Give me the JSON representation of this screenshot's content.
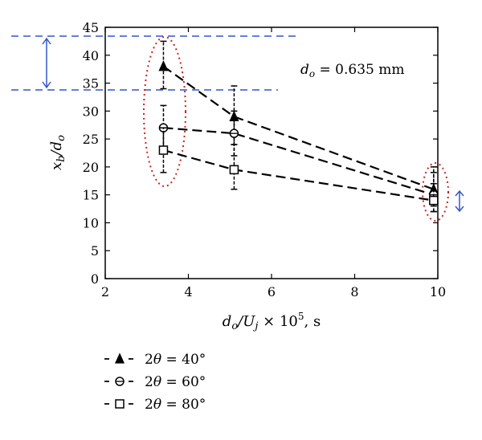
{
  "chart_data": {
    "type": "scatter",
    "xlabel": "d_o/U_j × 10^5, s",
    "ylabel": "x_b/d_o",
    "xlim": [
      2,
      10
    ],
    "ylim": [
      0,
      45
    ],
    "x_ticks": [
      2,
      4,
      6,
      8,
      10
    ],
    "y_ticks": [
      0,
      5,
      10,
      15,
      20,
      25,
      30,
      35,
      40,
      45
    ],
    "grid": false,
    "legend_position": "bottom-left (below plot)",
    "annotation": "d_o = 0.635 mm",
    "series": [
      {
        "name": "2θ = 40°",
        "marker": "triangle",
        "x": [
          3.4,
          5.1,
          9.9
        ],
        "y": [
          38,
          29,
          16
        ],
        "y_err_low": [
          34,
          24,
          13
        ],
        "y_err_high": [
          42.5,
          34.5,
          20
        ]
      },
      {
        "name": "2θ = 60°",
        "marker": "circle",
        "x": [
          3.4,
          5.1,
          9.9
        ],
        "y": [
          27,
          26,
          15
        ],
        "y_err_low": [
          23,
          22,
          12
        ],
        "y_err_high": [
          31,
          30,
          19
        ]
      },
      {
        "name": "2θ = 80°",
        "marker": "square",
        "x": [
          3.4,
          5.1,
          9.9
        ],
        "y": [
          23,
          19.5,
          14
        ],
        "y_err_low": [
          19,
          16,
          12
        ],
        "y_err_high": [
          27,
          24,
          17
        ]
      }
    ],
    "colors": {
      "guides": "#3355cc",
      "ellipses": "#cc2222",
      "data": "#000000"
    }
  }
}
